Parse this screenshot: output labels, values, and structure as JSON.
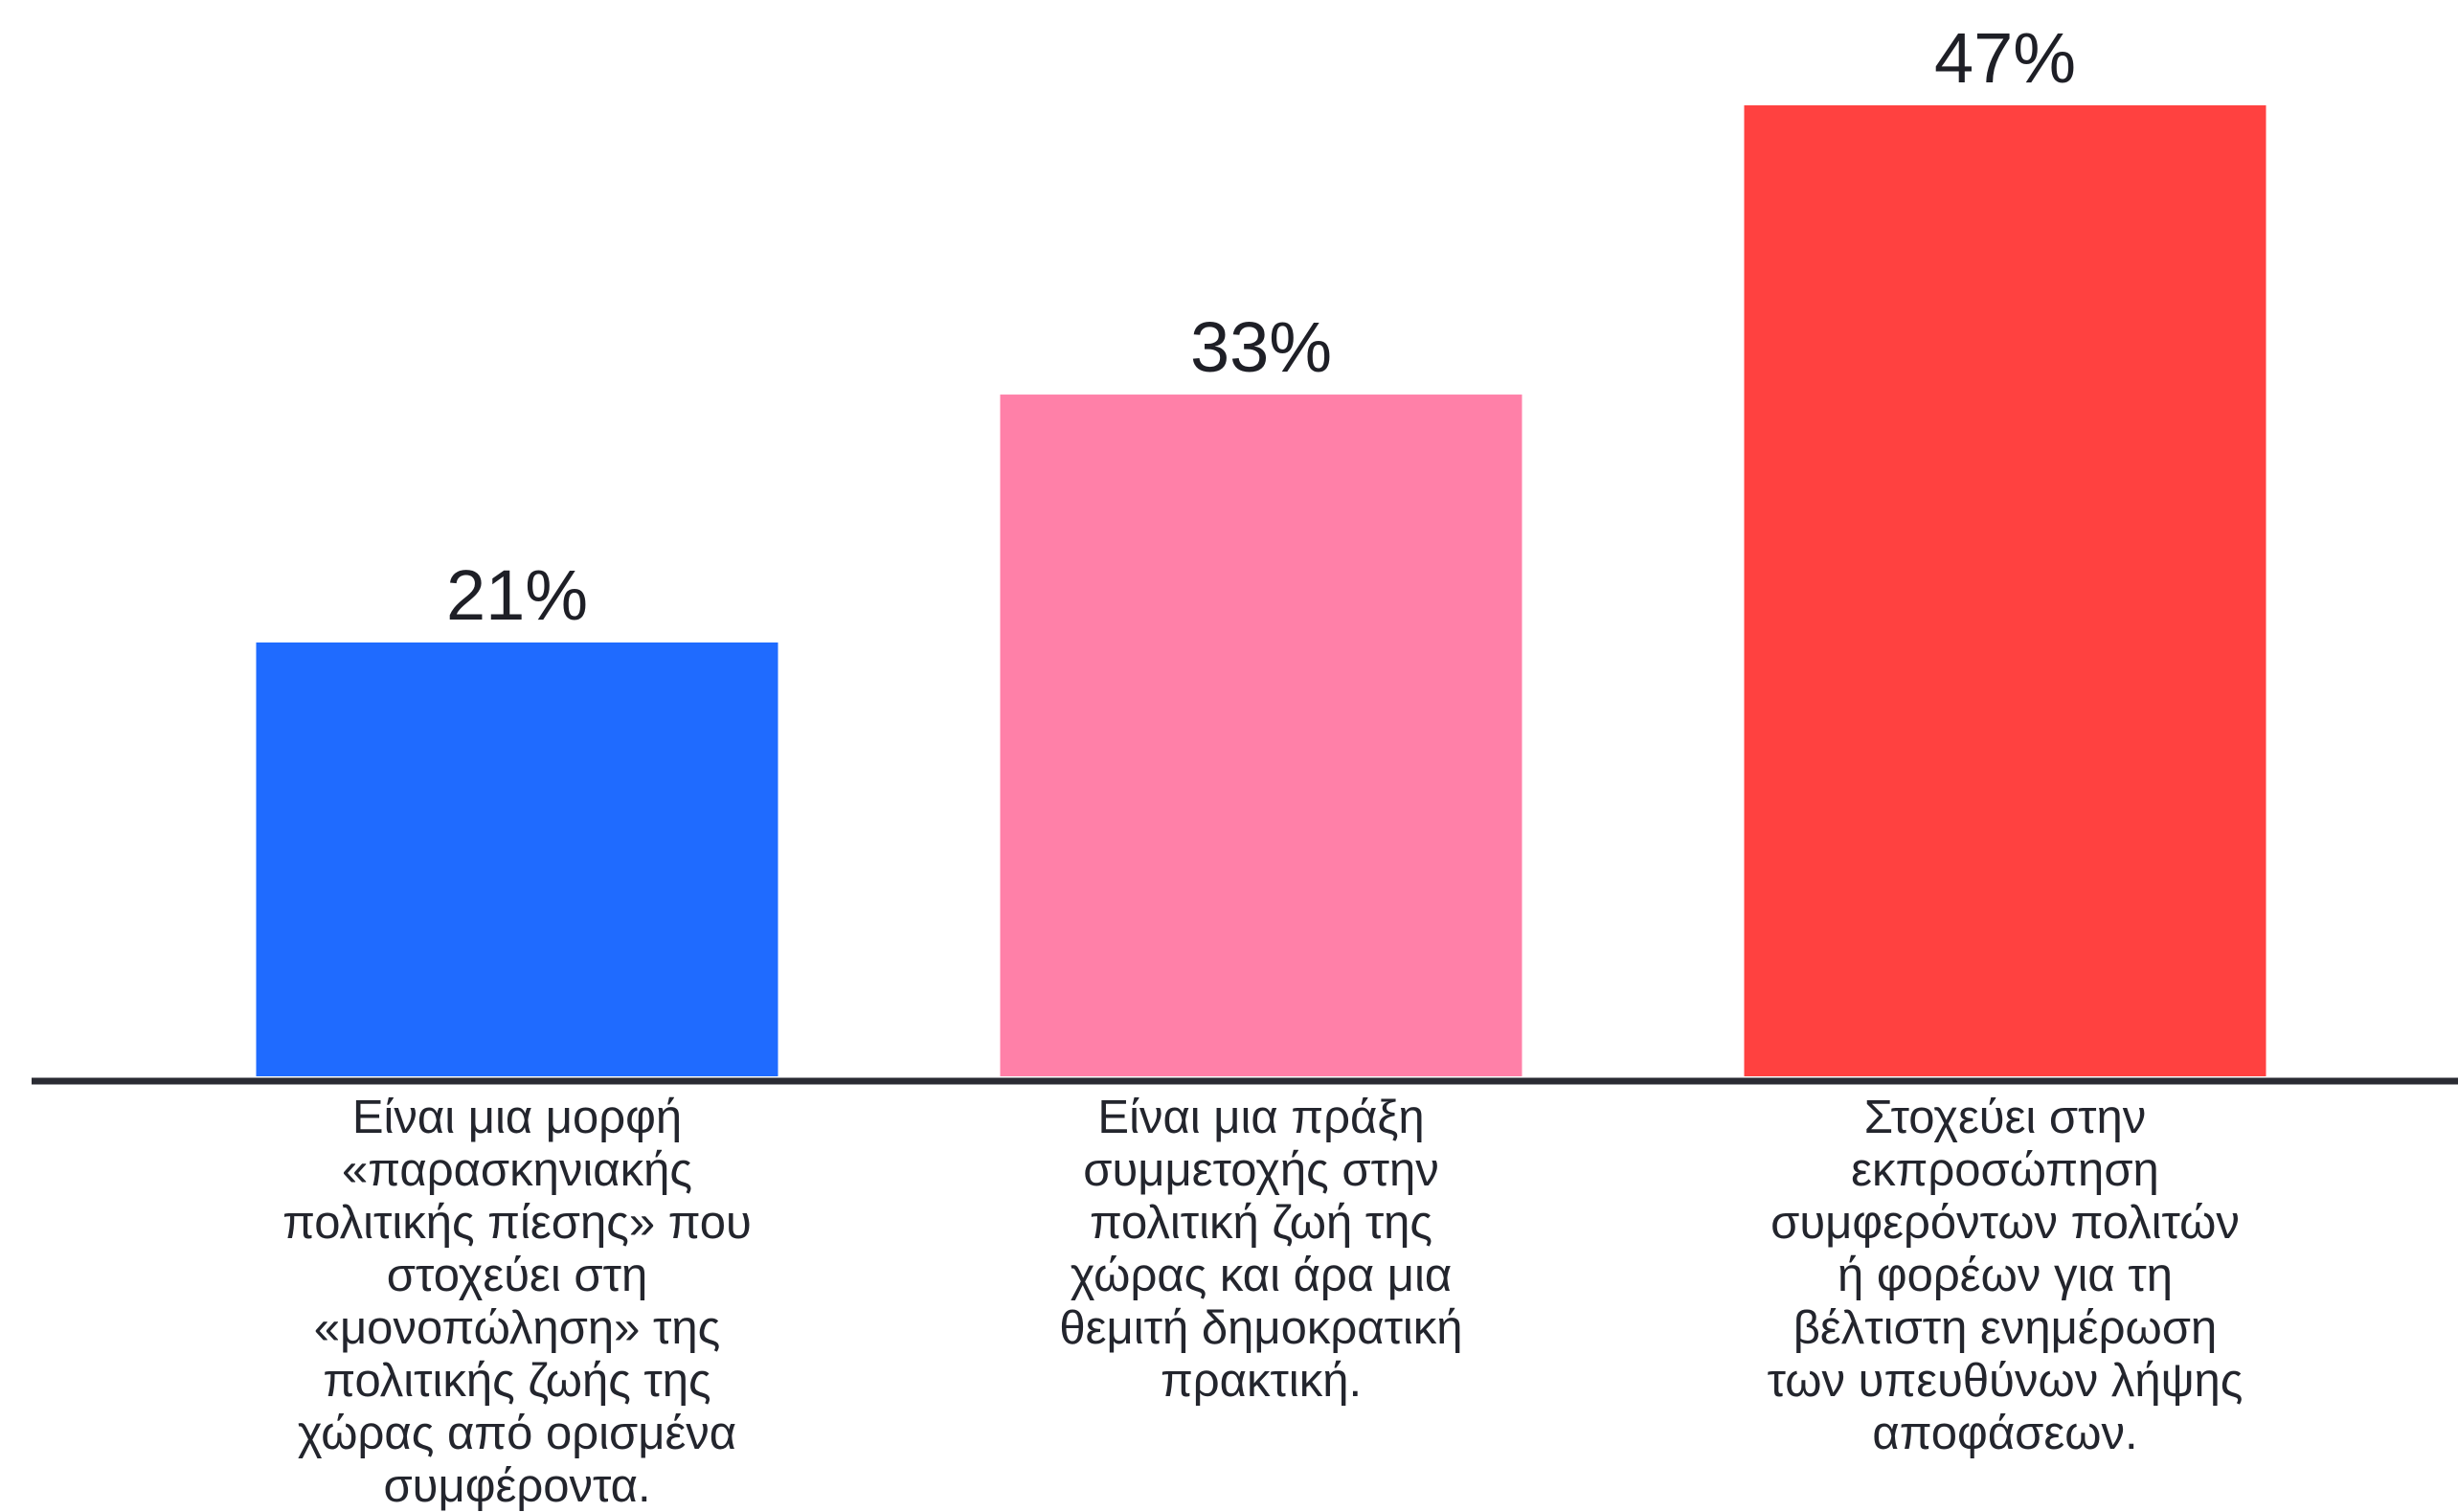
{
  "chart_data": {
    "type": "bar",
    "categories": [
      "Είναι μια μορφή\n«παρασκηνιακής\nπολιτικής πίεσης» που\nστοχεύει στη\n«μονοπώληση» της\nπολιτικής ζωής της\nχώρας από ορισμένα\nσυμφέροντα.",
      "Είναι μια πράξη\nσυμμετοχής στην\nπολιτική ζωή της\nχώρας και άρα μια\nθεμιτή δημοκρατική\nπρακτική.",
      "Στοχεύει στην\nεκπροσώπηση\nσυμφερόντων πολιτών\nή φορέων για τη\nβέλτιστη ενημέρωση\nτων υπευθύνων λήψης\nαποφάσεων."
    ],
    "values": [
      21,
      33,
      47
    ],
    "value_labels": [
      "21%",
      "33%",
      "47%"
    ],
    "colors": [
      "#1f6bff",
      "#ff80a8",
      "#ff4140"
    ],
    "axis_color": "#2a2b33",
    "ylim": [
      0,
      47
    ],
    "title": "",
    "xlabel": "",
    "ylabel": "",
    "grid": false,
    "legend": "none"
  }
}
